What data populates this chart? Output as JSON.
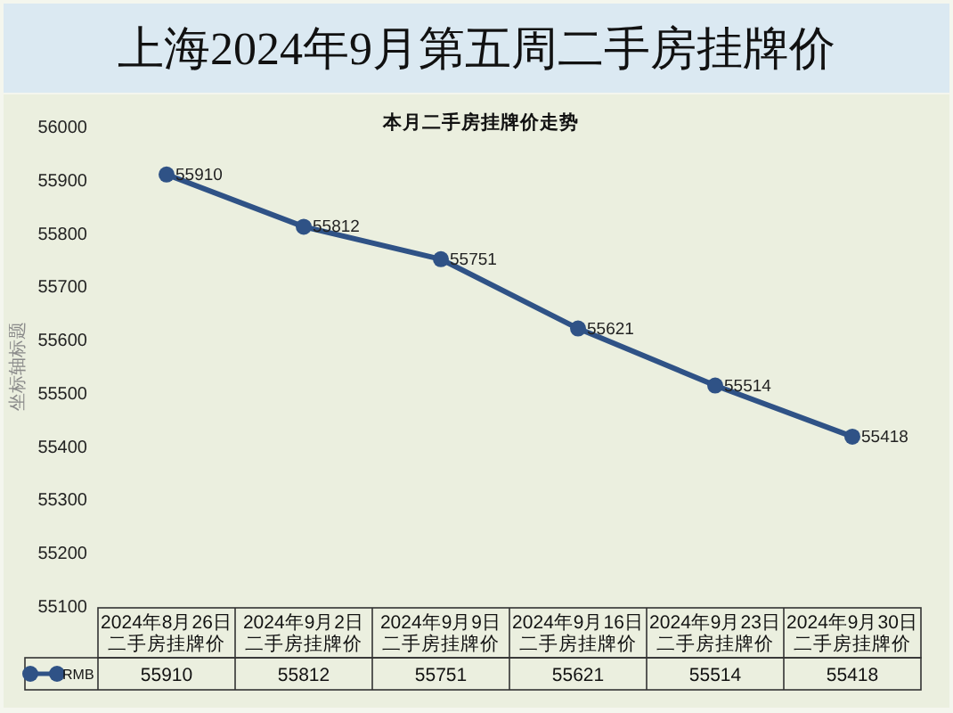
{
  "chart_data": {
    "type": "line",
    "title": "上海2024年9月第五周二手房挂牌价",
    "subtitle": "本月二手房挂牌价走势",
    "ylabel": "坐标轴标题",
    "categories": [
      "2024年8月26日二手房挂牌价",
      "2024年9月2日二手房挂牌价",
      "2024年9月9日二手房挂牌价",
      "2024年9月16日二手房挂牌价",
      "2024年9月23日二手房挂牌价",
      "2024年9月30日二手房挂牌价"
    ],
    "series": [
      {
        "name": "RMB",
        "color": "#2f5286",
        "values": [
          55910,
          55812,
          55751,
          55621,
          55514,
          55418
        ]
      }
    ],
    "annotations": [
      {
        "text": "55910",
        "x": "2024年8月26日二手房挂牌价",
        "y": 55910
      },
      {
        "text": "55812",
        "x": "2024年9月2日二手房挂牌价",
        "y": 55812
      },
      {
        "text": "55751",
        "x": "2024年9月9日二手房挂牌价",
        "y": 55751
      },
      {
        "text": "55621",
        "x": "2024年9月16日二手房挂牌价",
        "y": 55621
      },
      {
        "text": "55514",
        "x": "2024年9月23日二手房挂牌价",
        "y": 55514
      },
      {
        "text": "55418",
        "x": "2024年9月30日二手房挂牌价",
        "y": 55418
      }
    ],
    "ylim": [
      55100,
      56000
    ],
    "yticks": [
      55100,
      55200,
      55300,
      55400,
      55500,
      55600,
      55700,
      55800,
      55900,
      56000
    ],
    "data_labels": true,
    "marker": "circle",
    "line_style": "solid",
    "grid": false,
    "legend": "bottom"
  }
}
